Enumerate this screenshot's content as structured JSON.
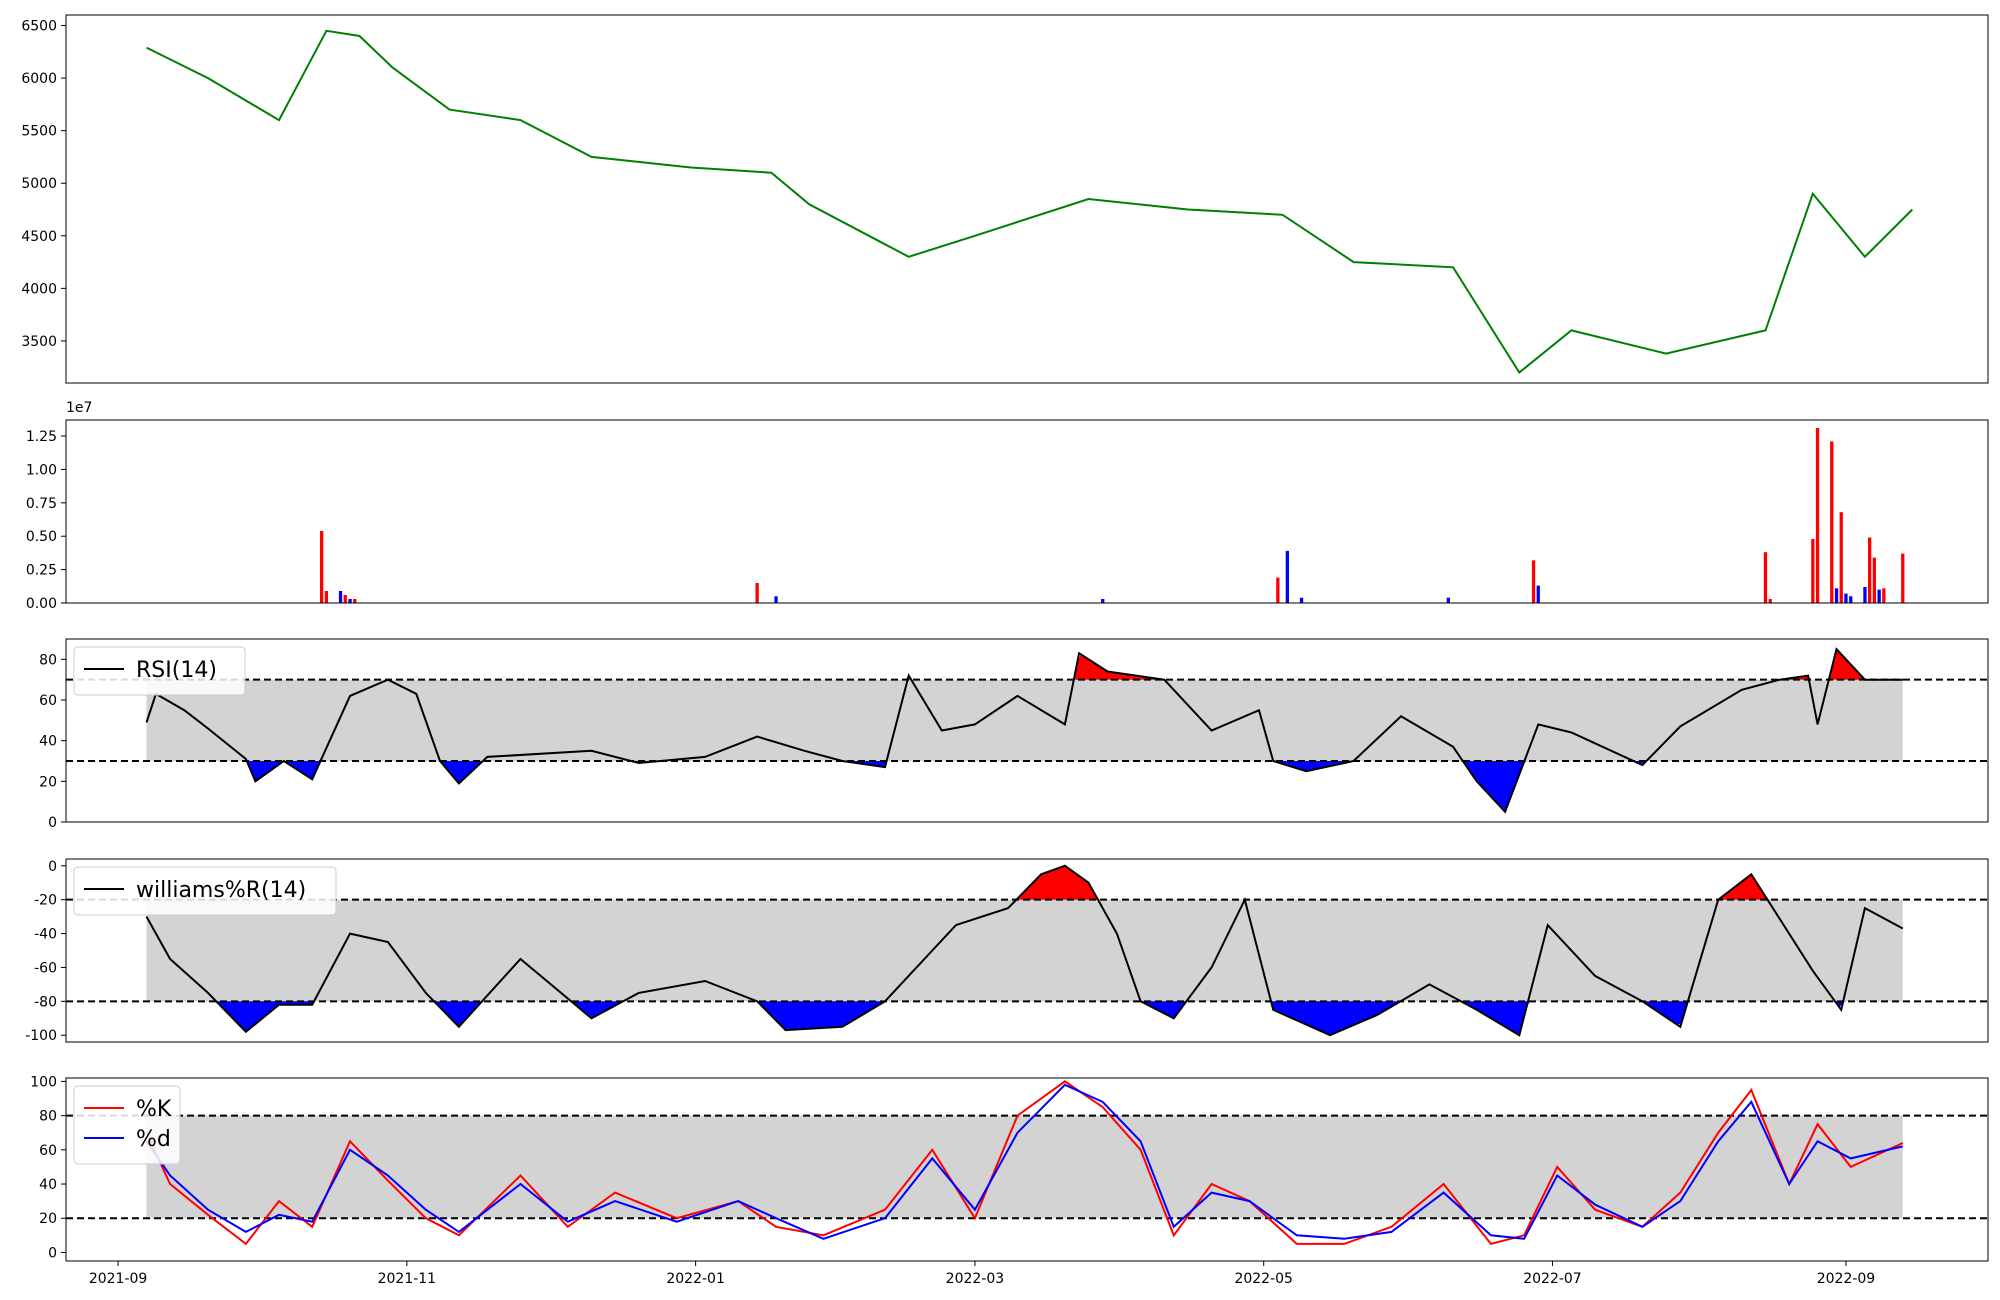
{
  "chart_data": [
    {
      "type": "line",
      "color": "#008000",
      "ylim": [
        3100,
        6600
      ],
      "yticks": [
        "6500",
        "6000",
        "5500",
        "5000",
        "4500",
        "4000",
        "3500"
      ],
      "x": [
        "2021-09-07",
        "2021-09-20",
        "2021-10-05",
        "2021-10-15",
        "2021-10-22",
        "2021-10-29",
        "2021-11-10",
        "2021-11-25",
        "2021-12-10",
        "2021-12-31",
        "2022-01-17",
        "2022-01-25",
        "2022-02-15",
        "2022-03-01",
        "2022-03-25",
        "2022-04-15",
        "2022-05-05",
        "2022-05-20",
        "2022-06-10",
        "2022-06-24",
        "2022-07-05",
        "2022-07-25",
        "2022-08-15",
        "2022-08-25",
        "2022-09-05",
        "2022-09-15"
      ],
      "values": [
        6290,
        6000,
        5600,
        6450,
        6400,
        6100,
        5700,
        5600,
        5250,
        5150,
        5100,
        4800,
        4300,
        4500,
        4850,
        4750,
        4700,
        4250,
        4200,
        3200,
        3600,
        3380,
        3600,
        4900,
        4300,
        4750
      ]
    },
    {
      "type": "bar",
      "exponent_label": "1e7",
      "ylim": [
        0,
        1.37
      ],
      "yticks": [
        "1.25",
        "1.00",
        "0.75",
        "0.50",
        "0.25",
        "0.00"
      ],
      "bars": [
        {
          "x": "2021-10-14",
          "value": 0.54,
          "color": "#ff0000"
        },
        {
          "x": "2021-10-15",
          "value": 0.09,
          "color": "#ff0000"
        },
        {
          "x": "2021-10-18",
          "value": 0.09,
          "color": "#0000ff"
        },
        {
          "x": "2021-10-19",
          "value": 0.06,
          "color": "#ff0000"
        },
        {
          "x": "2021-10-20",
          "value": 0.03,
          "color": "#0000ff"
        },
        {
          "x": "2021-10-21",
          "value": 0.03,
          "color": "#ff0000"
        },
        {
          "x": "2022-01-14",
          "value": 0.15,
          "color": "#ff0000"
        },
        {
          "x": "2022-01-18",
          "value": 0.05,
          "color": "#0000ff"
        },
        {
          "x": "2022-03-28",
          "value": 0.03,
          "color": "#0000ff"
        },
        {
          "x": "2022-05-04",
          "value": 0.19,
          "color": "#ff0000"
        },
        {
          "x": "2022-05-06",
          "value": 0.39,
          "color": "#0000ff"
        },
        {
          "x": "2022-05-09",
          "value": 0.04,
          "color": "#0000ff"
        },
        {
          "x": "2022-06-09",
          "value": 0.04,
          "color": "#0000ff"
        },
        {
          "x": "2022-06-27",
          "value": 0.32,
          "color": "#ff0000"
        },
        {
          "x": "2022-06-28",
          "value": 0.13,
          "color": "#0000ff"
        },
        {
          "x": "2022-08-15",
          "value": 0.38,
          "color": "#ff0000"
        },
        {
          "x": "2022-08-16",
          "value": 0.03,
          "color": "#ff0000"
        },
        {
          "x": "2022-08-25",
          "value": 0.48,
          "color": "#ff0000"
        },
        {
          "x": "2022-08-26",
          "value": 1.31,
          "color": "#ff0000"
        },
        {
          "x": "2022-08-29",
          "value": 1.21,
          "color": "#ff0000"
        },
        {
          "x": "2022-08-30",
          "value": 0.11,
          "color": "#0000ff"
        },
        {
          "x": "2022-08-31",
          "value": 0.68,
          "color": "#ff0000"
        },
        {
          "x": "2022-09-01",
          "value": 0.07,
          "color": "#0000ff"
        },
        {
          "x": "2022-09-02",
          "value": 0.05,
          "color": "#0000ff"
        },
        {
          "x": "2022-09-05",
          "value": 0.12,
          "color": "#0000ff"
        },
        {
          "x": "2022-09-06",
          "value": 0.49,
          "color": "#ff0000"
        },
        {
          "x": "2022-09-07",
          "value": 0.34,
          "color": "#ff0000"
        },
        {
          "x": "2022-09-08",
          "value": 0.1,
          "color": "#0000ff"
        },
        {
          "x": "2022-09-09",
          "value": 0.11,
          "color": "#ff0000"
        },
        {
          "x": "2022-09-13",
          "value": 0.37,
          "color": "#ff0000"
        }
      ]
    },
    {
      "type": "line",
      "legend": "RSI(14)",
      "ylim": [
        0,
        90
      ],
      "yticks": [
        "80",
        "60",
        "40",
        "20",
        "0"
      ],
      "band": [
        30,
        70
      ],
      "x": [
        "2021-09-07",
        "2021-09-09",
        "2021-09-15",
        "2021-09-20",
        "2021-09-28",
        "2021-09-30",
        "2021-10-06",
        "2021-10-12",
        "2021-10-20",
        "2021-10-28",
        "2021-11-03",
        "2021-11-08",
        "2021-11-12",
        "2021-11-18",
        "2021-12-10",
        "2021-12-20",
        "2022-01-03",
        "2022-01-14",
        "2022-01-24",
        "2022-02-01",
        "2022-02-10",
        "2022-02-15",
        "2022-02-22",
        "2022-03-01",
        "2022-03-10",
        "2022-03-20",
        "2022-03-23",
        "2022-03-29",
        "2022-04-10",
        "2022-04-20",
        "2022-04-30",
        "2022-05-03",
        "2022-05-10",
        "2022-05-20",
        "2022-05-30",
        "2022-06-10",
        "2022-06-15",
        "2022-06-21",
        "2022-06-28",
        "2022-07-05",
        "2022-07-20",
        "2022-07-28",
        "2022-08-10",
        "2022-08-18",
        "2022-08-24",
        "2022-08-26",
        "2022-08-30",
        "2022-09-05",
        "2022-09-13"
      ],
      "values": [
        49,
        63,
        55,
        46,
        31,
        20,
        30,
        21,
        62,
        70,
        63,
        30,
        19,
        32,
        35,
        29,
        32,
        42,
        35,
        30,
        27,
        72,
        45,
        48,
        62,
        48,
        83,
        74,
        70,
        45,
        55,
        30,
        25,
        30,
        52,
        37,
        20,
        5,
        48,
        44,
        28,
        47,
        65,
        70,
        72,
        48,
        85,
        70,
        70
      ],
      "overbought_color": "#ff0000",
      "oversold_color": "#0000ff"
    },
    {
      "type": "line",
      "legend": "williams%R(14)",
      "ylim": [
        -104,
        4
      ],
      "yticks": [
        "0",
        "-20",
        "-40",
        "-60",
        "-80",
        "-100"
      ],
      "band": [
        -80,
        -20
      ],
      "x": [
        "2021-09-07",
        "2021-09-12",
        "2021-09-20",
        "2021-09-28",
        "2021-10-05",
        "2021-10-12",
        "2021-10-20",
        "2021-10-28",
        "2021-11-05",
        "2021-11-12",
        "2021-11-25",
        "2021-12-10",
        "2021-12-20",
        "2022-01-03",
        "2022-01-14",
        "2022-01-20",
        "2022-02-01",
        "2022-02-10",
        "2022-02-20",
        "2022-02-25",
        "2022-03-08",
        "2022-03-15",
        "2022-03-20",
        "2022-03-25",
        "2022-03-31",
        "2022-04-05",
        "2022-04-12",
        "2022-04-20",
        "2022-04-27",
        "2022-05-03",
        "2022-05-15",
        "2022-05-25",
        "2022-06-05",
        "2022-06-15",
        "2022-06-24",
        "2022-06-30",
        "2022-07-10",
        "2022-07-20",
        "2022-07-28",
        "2022-08-05",
        "2022-08-12",
        "2022-08-25",
        "2022-08-31",
        "2022-09-05",
        "2022-09-13"
      ],
      "values": [
        -30,
        -55,
        -75,
        -98,
        -82,
        -82,
        -40,
        -45,
        -75,
        -95,
        -55,
        -90,
        -75,
        -68,
        -80,
        -97,
        -95,
        -80,
        -50,
        -35,
        -25,
        -5,
        0,
        -10,
        -40,
        -80,
        -90,
        -60,
        -20,
        -85,
        -100,
        -88,
        -70,
        -85,
        -100,
        -35,
        -65,
        -80,
        -95,
        -20,
        -5,
        -62,
        -85,
        -25,
        -37
      ],
      "overbought_color": "#ff0000",
      "oversold_color": "#0000ff"
    },
    {
      "type": "line",
      "ylim": [
        -5,
        102
      ],
      "yticks": [
        "100",
        "80",
        "60",
        "40",
        "20",
        "0"
      ],
      "band": [
        20,
        80
      ],
      "x": [
        "2021-09-07",
        "2021-09-12",
        "2021-09-20",
        "2021-09-28",
        "2021-10-05",
        "2021-10-12",
        "2021-10-20",
        "2021-10-28",
        "2021-11-05",
        "2021-11-12",
        "2021-11-25",
        "2021-12-05",
        "2021-12-15",
        "2021-12-28",
        "2022-01-10",
        "2022-01-18",
        "2022-01-28",
        "2022-02-10",
        "2022-02-20",
        "2022-03-01",
        "2022-03-10",
        "2022-03-20",
        "2022-03-28",
        "2022-04-05",
        "2022-04-12",
        "2022-04-20",
        "2022-04-28",
        "2022-05-08",
        "2022-05-18",
        "2022-05-28",
        "2022-06-08",
        "2022-06-18",
        "2022-06-25",
        "2022-07-02",
        "2022-07-10",
        "2022-07-20",
        "2022-07-28",
        "2022-08-05",
        "2022-08-12",
        "2022-08-20",
        "2022-08-26",
        "2022-09-02",
        "2022-09-13"
      ],
      "series": [
        {
          "name": "%K",
          "color": "#ff0000",
          "values": [
            70,
            40,
            22,
            5,
            30,
            15,
            65,
            42,
            20,
            10,
            45,
            15,
            35,
            20,
            30,
            15,
            10,
            25,
            60,
            20,
            80,
            100,
            85,
            60,
            10,
            40,
            30,
            5,
            5,
            15,
            40,
            5,
            10,
            50,
            25,
            15,
            35,
            70,
            95,
            40,
            75,
            50,
            64
          ]
        },
        {
          "name": "%d",
          "color": "#0000ff",
          "values": [
            65,
            45,
            25,
            12,
            22,
            18,
            60,
            45,
            25,
            12,
            40,
            18,
            30,
            18,
            30,
            20,
            8,
            20,
            55,
            25,
            70,
            98,
            88,
            65,
            15,
            35,
            30,
            10,
            8,
            12,
            35,
            10,
            8,
            45,
            28,
            15,
            30,
            65,
            88,
            40,
            65,
            55,
            62
          ]
        }
      ]
    },
    {
      "type": "axis",
      "xlim": [
        "2021-08-21",
        "2022-10-01"
      ],
      "xticks": [
        "2021-09",
        "2021-11",
        "2022-01",
        "2022-03",
        "2022-05",
        "2022-07",
        "2022-09"
      ]
    }
  ]
}
